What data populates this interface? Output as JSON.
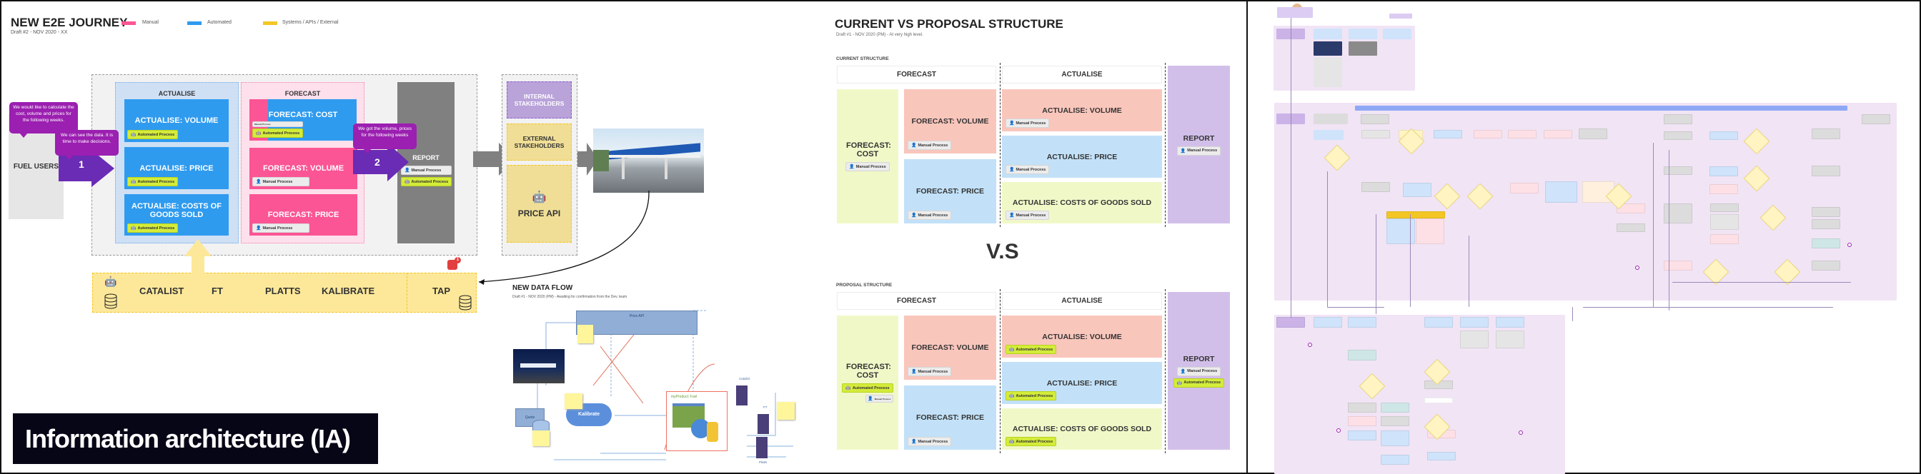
{
  "left": {
    "title": "NEW E2E JOURNEY",
    "subtitle": "Draft #2 - NOV 2020 - XX",
    "legend": [
      {
        "label": "Manual",
        "color": "#fb5595"
      },
      {
        "label": "Automated",
        "color": "#2f9bef"
      },
      {
        "label": "Systems / APIs / External",
        "color": "#f3c623"
      }
    ],
    "fuel_users": "FUEL USERS",
    "bubbles": [
      "We would like to calculate the cost, volume and prices for the following weeks.",
      "We can see the data. It is time to make decisions.",
      "We got the volume, prices for the following weeks"
    ],
    "steps": [
      "1",
      "2"
    ],
    "actualise": {
      "title": "ACTUALISE",
      "cards": [
        {
          "label": "ACTUALISE: VOLUME",
          "badge": "Automated Process"
        },
        {
          "label": "ACTUALISE: PRICE",
          "badge": "Automated Process"
        },
        {
          "label": "ACTUALISE: COSTS OF GOODS SOLD",
          "badge": "Automated Process"
        }
      ]
    },
    "forecast": {
      "title": "FORECAST",
      "cards": [
        {
          "label": "FORECAST: COST",
          "badge": "Automated Process",
          "small_badge": "Manual Process"
        },
        {
          "label": "FORECAST: VOLUME",
          "badge": "Manual Process"
        },
        {
          "label": "FORECAST: PRICE",
          "badge": "Manual Process"
        }
      ]
    },
    "report": {
      "label": "REPORT",
      "badges": [
        "Manual Process",
        "Automated Process"
      ]
    },
    "stakeholders": {
      "internal": "INTERNAL STAKEHOLDERS",
      "external": "EXTERNAL STAKEHOLDERS",
      "price_api": "PRICE API"
    },
    "systems": {
      "items": [
        "CATALIST",
        "FT",
        "PLATTS",
        "KALIBRATE"
      ],
      "tap": "TAP",
      "notification_count": "1"
    },
    "ia_label": "Information architecture (IA)",
    "data_flow": {
      "title": "NEW DATA FLOW",
      "subtitle": "Draft #1 - NOV 2020 (PM) - Awaiting for confirmation from the Dev. team",
      "price_api": "Price API",
      "quote": "Quote",
      "kalibrate": "Kalibrate",
      "product": "myProduct: Fuel",
      "servers": [
        "Catalist",
        "FT",
        "Platts"
      ]
    }
  },
  "middle": {
    "title": "CURRENT VS PROPOSAL STRUCTURE",
    "subtitle": "Draft #1 - NOV 2020 (PM) - At very high level.",
    "vs": "V.S",
    "sections": [
      {
        "label": "CURRENT STRUCTURE",
        "headers": [
          "FORECAST",
          "ACTUALISE"
        ],
        "cards": [
          {
            "label": "FORECAST: COST",
            "badges": [
              "Manual Process"
            ]
          },
          {
            "label": "FORECAST: VOLUME",
            "badges": [
              "Manual Process"
            ]
          },
          {
            "label": "FORECAST: PRICE",
            "badges": [
              "Manual Process"
            ]
          },
          {
            "label": "ACTUALISE: VOLUME",
            "badges": [
              "Manual Process"
            ]
          },
          {
            "label": "ACTUALISE: PRICE",
            "badges": [
              "Manual Process"
            ]
          },
          {
            "label": "ACTUALISE: COSTS OF GOODS SOLD",
            "badges": [
              "Manual Process"
            ]
          },
          {
            "label": "REPORT",
            "badges": [
              "Manual Process"
            ]
          }
        ]
      },
      {
        "label": "PROPOSAL STRUCTURE",
        "headers": [
          "FORECAST",
          "ACTUALISE"
        ],
        "cards": [
          {
            "label": "FORECAST: COST",
            "badges": [
              "Automated Process",
              "Manual Process"
            ]
          },
          {
            "label": "FORECAST: VOLUME",
            "badges": [
              "Manual Process"
            ]
          },
          {
            "label": "FORECAST: PRICE",
            "badges": [
              "Manual Process"
            ]
          },
          {
            "label": "ACTUALISE: VOLUME",
            "badges": [
              "Automated Process"
            ]
          },
          {
            "label": "ACTUALISE: PRICE",
            "badges": [
              "Automated Process"
            ]
          },
          {
            "label": "ACTUALISE: COSTS OF GOODS SOLD",
            "badges": [
              "Automated Process"
            ]
          },
          {
            "label": "REPORT",
            "badges": [
              "Manual Process",
              "Automated Process"
            ]
          }
        ]
      }
    ],
    "colors": {
      "green": "#f1f8c8",
      "pink": "#f9c6bc",
      "blue": "#c2e1f8",
      "purple": "#d2bfe9"
    }
  },
  "right": {
    "region_color": "#f1e4f5",
    "header_bar_color": "#8fa8f5"
  }
}
